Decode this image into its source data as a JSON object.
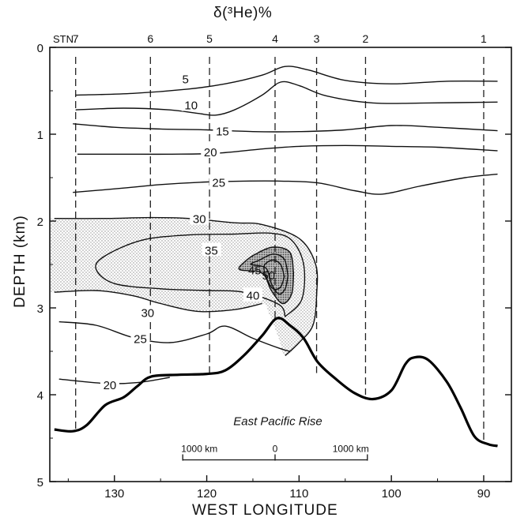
{
  "chart_data": {
    "type": "contour",
    "title": "δ(³He)%",
    "xlabel": "WEST LONGITUDE",
    "ylabel": "DEPTH (km)",
    "x_range": [
      137,
      87
    ],
    "y_range": [
      0,
      5
    ],
    "x_ticks": [
      "130",
      "120",
      "110",
      "100",
      "90"
    ],
    "y_ticks": [
      "0",
      "1",
      "2",
      "3",
      "4",
      "5"
    ],
    "station_header": "STN.",
    "stations": [
      {
        "label": "7",
        "longitude": 134.2
      },
      {
        "label": "6",
        "longitude": 126.1
      },
      {
        "label": "5",
        "longitude": 119.7
      },
      {
        "label": "4",
        "longitude": 112.6
      },
      {
        "label": "3",
        "longitude": 108.1
      },
      {
        "label": "2",
        "longitude": 102.8
      },
      {
        "label": "1",
        "longitude": 90.0
      }
    ],
    "contours": [
      {
        "level": "5",
        "points": [
          [
            134.2,
            0.55
          ],
          [
            128,
            0.53
          ],
          [
            122,
            0.48
          ],
          [
            118,
            0.42
          ],
          [
            114,
            0.32
          ],
          [
            111.5,
            0.22
          ],
          [
            109,
            0.26
          ],
          [
            105,
            0.38
          ],
          [
            100,
            0.42
          ],
          [
            94,
            0.39
          ],
          [
            88.5,
            0.39
          ]
        ]
      },
      {
        "level": "10",
        "points": [
          [
            134.2,
            0.72
          ],
          [
            129,
            0.7
          ],
          [
            124,
            0.72
          ],
          [
            121,
            0.76
          ],
          [
            119,
            0.78
          ],
          [
            117,
            0.72
          ],
          [
            114,
            0.55
          ],
          [
            112,
            0.4
          ],
          [
            110,
            0.44
          ],
          [
            107,
            0.56
          ],
          [
            102,
            0.64
          ],
          [
            96,
            0.64
          ],
          [
            88.5,
            0.63
          ]
        ]
      },
      {
        "level": "15",
        "points": [
          [
            134.5,
            0.88
          ],
          [
            130,
            0.92
          ],
          [
            125,
            0.94
          ],
          [
            120,
            0.95
          ],
          [
            115,
            0.97
          ],
          [
            110,
            0.97
          ],
          [
            105,
            0.95
          ],
          [
            100,
            0.9
          ],
          [
            95,
            0.92
          ],
          [
            88.5,
            0.96
          ]
        ]
      },
      {
        "level": "20",
        "points": [
          [
            134,
            1.23
          ],
          [
            129,
            1.23
          ],
          [
            124,
            1.23
          ],
          [
            119,
            1.22
          ],
          [
            114,
            1.17
          ],
          [
            110,
            1.14
          ],
          [
            105,
            1.13
          ],
          [
            100,
            1.14
          ],
          [
            95,
            1.15
          ],
          [
            88.5,
            1.19
          ]
        ]
      },
      {
        "level": "25",
        "points": [
          [
            134.5,
            1.67
          ],
          [
            129,
            1.62
          ],
          [
            125,
            1.58
          ],
          [
            120,
            1.55
          ],
          [
            116,
            1.54
          ],
          [
            112,
            1.54
          ],
          [
            108,
            1.56
          ],
          [
            104,
            1.65
          ],
          [
            101,
            1.69
          ],
          [
            97,
            1.6
          ],
          [
            92,
            1.5
          ],
          [
            88.5,
            1.46
          ]
        ]
      },
      {
        "level": "30",
        "points": [
          [
            136.5,
            1.97
          ],
          [
            131,
            1.97
          ],
          [
            126,
            1.96
          ],
          [
            122,
            1.97
          ],
          [
            117,
            2.02
          ],
          [
            114,
            2.04
          ],
          [
            110,
            2.2
          ],
          [
            108.2,
            2.5
          ],
          [
            108.1,
            2.85
          ],
          [
            108.5,
            3.2
          ],
          [
            110,
            3.4
          ],
          [
            111.5,
            3.55
          ]
        ]
      },
      {
        "level": "30",
        "points": [
          [
            136.5,
            2.82
          ],
          [
            132,
            2.8
          ],
          [
            128,
            2.86
          ],
          [
            125,
            2.95
          ],
          [
            121,
            3.04
          ],
          [
            117,
            3.02
          ],
          [
            114,
            2.95
          ]
        ]
      },
      {
        "level": "35",
        "points": [
          [
            111.5,
            3.1
          ],
          [
            109.7,
            2.9
          ],
          [
            109.5,
            2.5
          ],
          [
            110.8,
            2.22
          ],
          [
            113,
            2.14
          ],
          [
            117,
            2.15
          ],
          [
            122,
            2.16
          ],
          [
            127,
            2.22
          ],
          [
            131,
            2.4
          ],
          [
            132,
            2.55
          ],
          [
            130,
            2.72
          ],
          [
            125,
            2.78
          ],
          [
            120,
            2.8
          ],
          [
            116,
            2.82
          ],
          [
            112.2,
            2.96
          ],
          [
            111.5,
            3.1
          ]
        ]
      },
      {
        "level": "40",
        "points": [
          [
            110.6,
            2.6
          ],
          [
            111,
            2.36
          ],
          [
            112.8,
            2.3
          ],
          [
            114.7,
            2.38
          ],
          [
            116,
            2.48
          ],
          [
            116.4,
            2.56
          ],
          [
            114,
            2.6
          ],
          [
            113,
            2.8
          ],
          [
            111.8,
            2.95
          ],
          [
            110.8,
            2.84
          ],
          [
            110.6,
            2.6
          ]
        ]
      },
      {
        "level": "45",
        "points": [
          [
            111.2,
            2.63
          ],
          [
            111.6,
            2.44
          ],
          [
            112.8,
            2.38
          ],
          [
            114.3,
            2.45
          ],
          [
            115.2,
            2.5
          ],
          [
            113.6,
            2.54
          ],
          [
            113.0,
            2.72
          ],
          [
            112.2,
            2.84
          ],
          [
            111.5,
            2.78
          ],
          [
            111.2,
            2.63
          ]
        ]
      },
      {
        "level": "50",
        "points": [
          [
            111.6,
            2.64
          ],
          [
            112.0,
            2.5
          ],
          [
            112.9,
            2.45
          ],
          [
            113.8,
            2.52
          ],
          [
            113.5,
            2.66
          ],
          [
            112.8,
            2.78
          ],
          [
            112.0,
            2.76
          ],
          [
            111.6,
            2.64
          ]
        ]
      },
      {
        "level": "25",
        "points": [
          [
            136,
            3.16
          ],
          [
            132,
            3.2
          ],
          [
            128,
            3.34
          ],
          [
            124,
            3.4
          ],
          [
            120,
            3.3
          ],
          [
            118,
            3.21
          ],
          [
            115,
            3.35
          ],
          [
            112,
            3.47
          ],
          [
            111,
            3.5
          ]
        ]
      },
      {
        "level": "20",
        "points": [
          [
            136,
            3.82
          ],
          [
            131,
            3.87
          ],
          [
            127.5,
            3.86
          ],
          [
            124,
            3.8
          ]
        ]
      }
    ],
    "shading": {
      "from_level": "30",
      "to_level": "35",
      "darker_from_level": "40"
    },
    "ridge_profile": [
      [
        136.5,
        4.4
      ],
      [
        134.5,
        4.42
      ],
      [
        133,
        4.35
      ],
      [
        131,
        4.12
      ],
      [
        129,
        4.03
      ],
      [
        127.5,
        3.9
      ],
      [
        126,
        3.79
      ],
      [
        123,
        3.77
      ],
      [
        120,
        3.76
      ],
      [
        118,
        3.72
      ],
      [
        116,
        3.55
      ],
      [
        114,
        3.32
      ],
      [
        112.4,
        3.12
      ],
      [
        111,
        3.2
      ],
      [
        109.5,
        3.35
      ],
      [
        108,
        3.62
      ],
      [
        106,
        3.82
      ],
      [
        104,
        3.98
      ],
      [
        102,
        4.05
      ],
      [
        100,
        3.95
      ],
      [
        98.5,
        3.65
      ],
      [
        97.5,
        3.57
      ],
      [
        96,
        3.6
      ],
      [
        94,
        3.85
      ],
      [
        92.5,
        4.15
      ],
      [
        91,
        4.48
      ],
      [
        89.5,
        4.57
      ],
      [
        88.5,
        4.59
      ]
    ],
    "annotation": "East Pacific Rise",
    "scale_bar": {
      "left_label": "1000 km",
      "center_label": "0",
      "right_label": "1000 km"
    }
  }
}
